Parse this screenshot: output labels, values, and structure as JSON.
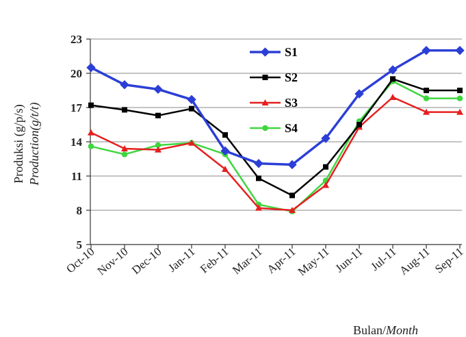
{
  "chart_data": {
    "type": "line",
    "categories": [
      "Oct-10",
      "Nov-10",
      "Dec-10",
      "Jan-11",
      "Feb-11",
      "Mar-11",
      "Apr-11",
      "May-11",
      "Jun-11",
      "Jul-11",
      "Aug-11",
      "Sep-11"
    ],
    "ylabel": "Produksi (g/p/s)",
    "ylabel_italic": "Production(g/t/t)",
    "xlabel": "Bulan/",
    "xlabel_italic": "Month",
    "ylim": [
      5,
      23
    ],
    "yticks": [
      5,
      8,
      11,
      14,
      17,
      20,
      23
    ],
    "grid": true,
    "legend_position": "top-center",
    "series": [
      {
        "name": "S1",
        "color": "#2b3fd6",
        "marker": "diamond",
        "values": [
          20.5,
          19.0,
          18.6,
          17.7,
          13.2,
          12.1,
          12.0,
          14.3,
          18.2,
          20.3,
          22.0,
          22.0
        ]
      },
      {
        "name": "S2",
        "color": "#000000",
        "marker": "square",
        "values": [
          17.2,
          16.8,
          16.3,
          16.9,
          14.6,
          10.8,
          9.3,
          11.8,
          15.5,
          19.5,
          18.5,
          18.5
        ]
      },
      {
        "name": "S3",
        "color": "#e51f1f",
        "marker": "triangle",
        "values": [
          14.8,
          13.4,
          13.3,
          13.9,
          11.6,
          8.2,
          8.0,
          10.2,
          15.3,
          17.9,
          16.6,
          16.6
        ]
      },
      {
        "name": "S4",
        "color": "#3fd63f",
        "marker": "circle",
        "values": [
          13.6,
          12.9,
          13.7,
          13.9,
          12.9,
          8.5,
          7.9,
          10.6,
          15.8,
          19.3,
          17.8,
          17.8
        ]
      }
    ]
  }
}
